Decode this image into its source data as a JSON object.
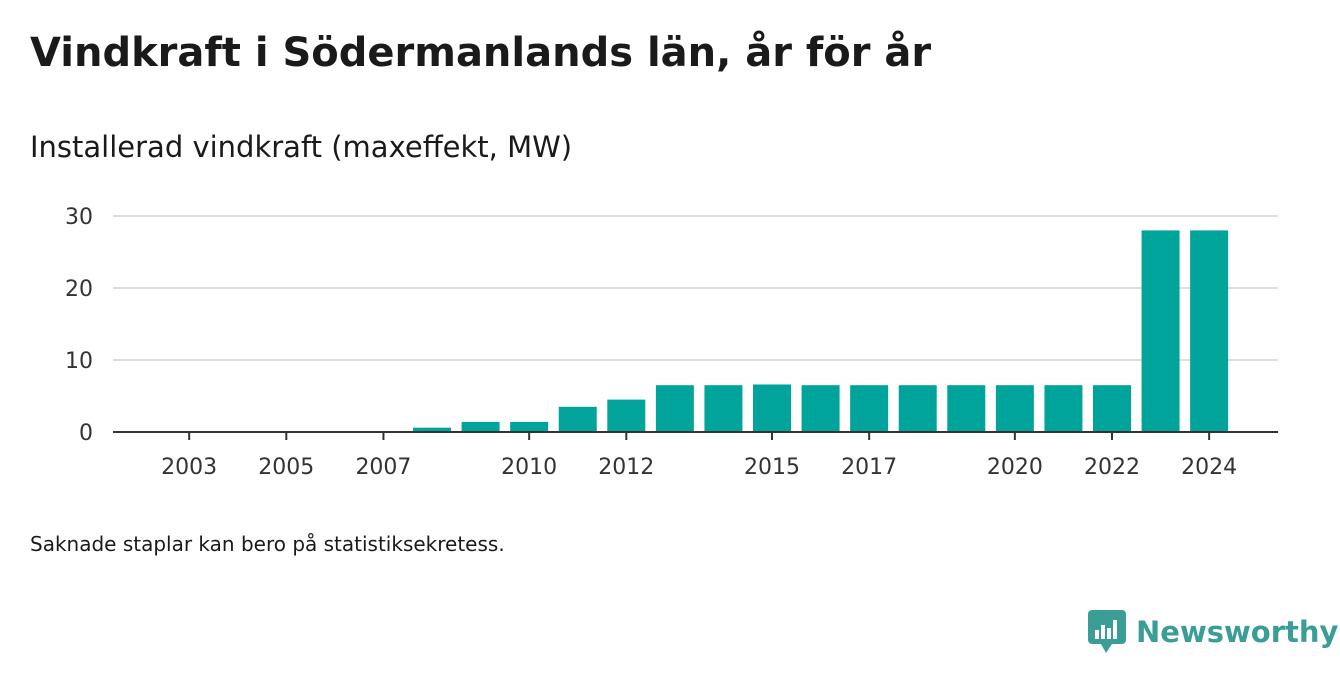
{
  "title": "Vindkraft i Södermanlands län, år för år",
  "subtitle": "Installerad vindkraft (maxeffekt, MW)",
  "footnote": "Saknade staplar kan bero på statistiksekretess.",
  "brand": {
    "name": "Newsworthy",
    "icon": "newsworthy-logo-icon",
    "color": "#3a9e96"
  },
  "colors": {
    "bar": "#00a49a",
    "grid": "#dddddd",
    "axis": "#333333"
  },
  "chart_data": {
    "type": "bar",
    "title": "Vindkraft i Södermanlands län, år för år",
    "subtitle": "Installerad vindkraft (maxeffekt, MW)",
    "xlabel": "",
    "ylabel": "",
    "categories": [
      "2002",
      "2003",
      "2004",
      "2005",
      "2006",
      "2007",
      "2008",
      "2009",
      "2010",
      "2011",
      "2012",
      "2013",
      "2014",
      "2015",
      "2016",
      "2017",
      "2018",
      "2019",
      "2020",
      "2021",
      "2022",
      "2023",
      "2024"
    ],
    "values": [
      0,
      0,
      0,
      0,
      0,
      0,
      0.6,
      1.4,
      1.4,
      3.5,
      4.5,
      6.5,
      6.5,
      6.6,
      6.5,
      6.5,
      6.5,
      6.5,
      6.5,
      6.5,
      6.5,
      28,
      28
    ],
    "xticks": [
      "2003",
      "2005",
      "2007",
      "2010",
      "2012",
      "2015",
      "2017",
      "2020",
      "2022",
      "2024"
    ],
    "yticks": [
      0,
      10,
      20,
      30
    ],
    "ylim": [
      0,
      30
    ],
    "grid": true,
    "legend": "none"
  }
}
